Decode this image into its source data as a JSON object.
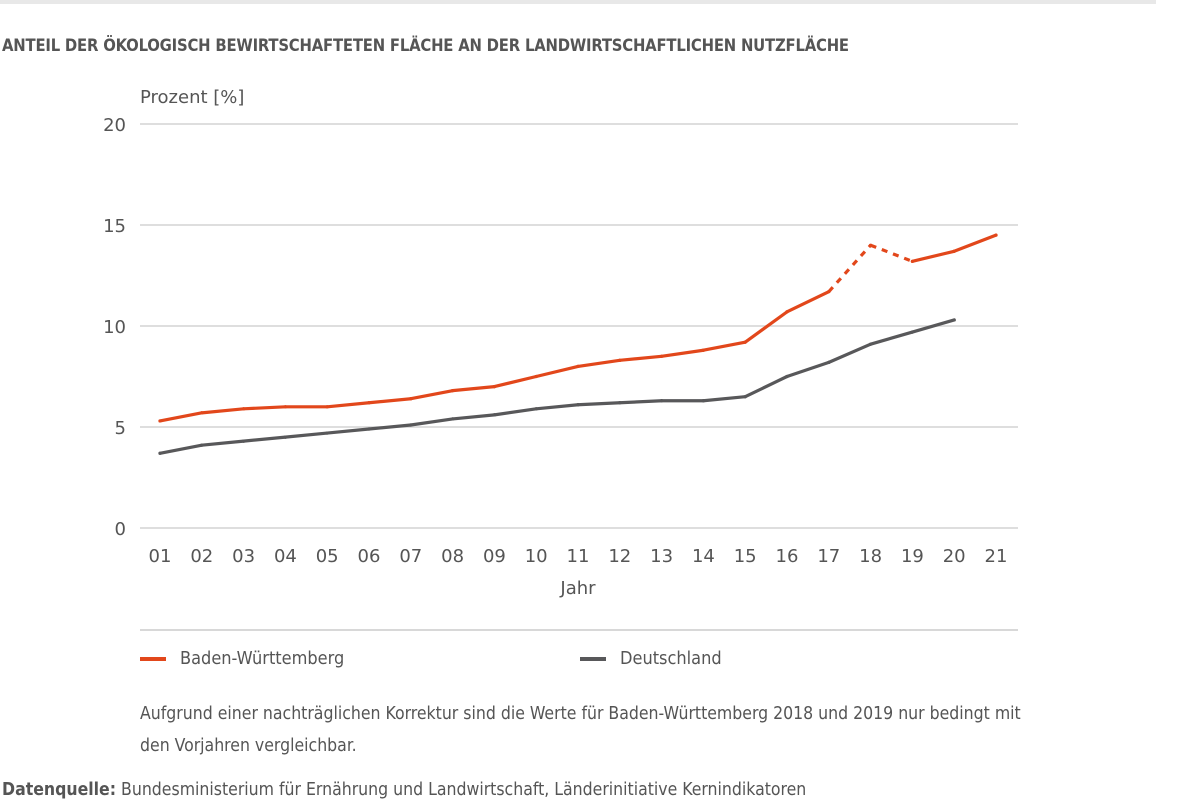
{
  "title": "ANTEIL DER ÖKOLOGISCH BEWIRTSCHAFTETEN FLÄCHE AN DER LANDWIRTSCHAFTLICHEN NUTZFLÄCHE",
  "note": "Aufgrund einer nachträglichen Korrektur sind die Werte für Baden-Württemberg 2018 und 2019 nur bedingt mit den Vorjahren vergleichbar.",
  "source": {
    "label": "Datenquelle:",
    "text": " Bundesministerium für Ernährung und Landwirtschaft, Länderinitiative Kernindikatoren"
  },
  "chart_data": {
    "type": "line",
    "ylabel": "Prozent [%]",
    "xlabel": "Jahr",
    "ylim": [
      0,
      20
    ],
    "yticks": [
      0,
      5,
      10,
      15,
      20
    ],
    "grid": true,
    "legend_position": "bottom",
    "categories": [
      "01",
      "02",
      "03",
      "04",
      "05",
      "06",
      "07",
      "08",
      "09",
      "10",
      "11",
      "12",
      "13",
      "14",
      "15",
      "16",
      "17",
      "18",
      "19",
      "20",
      "21"
    ],
    "series": [
      {
        "name": "Baden-Württemberg",
        "color": "#e2471b",
        "values": [
          5.3,
          5.7,
          5.9,
          6.0,
          6.0,
          6.2,
          6.4,
          6.8,
          7.0,
          7.5,
          8.0,
          8.3,
          8.5,
          8.8,
          9.2,
          10.7,
          11.7,
          14.0,
          13.2,
          13.7,
          14.5
        ],
        "dashed_segment": [
          "17",
          "19"
        ]
      },
      {
        "name": "Deutschland",
        "color": "#58585a",
        "values": [
          3.7,
          4.1,
          4.3,
          4.5,
          4.7,
          4.9,
          5.1,
          5.4,
          5.6,
          5.9,
          6.1,
          6.2,
          6.3,
          6.3,
          6.5,
          7.5,
          8.2,
          9.1,
          9.7,
          10.3,
          null
        ]
      }
    ]
  }
}
